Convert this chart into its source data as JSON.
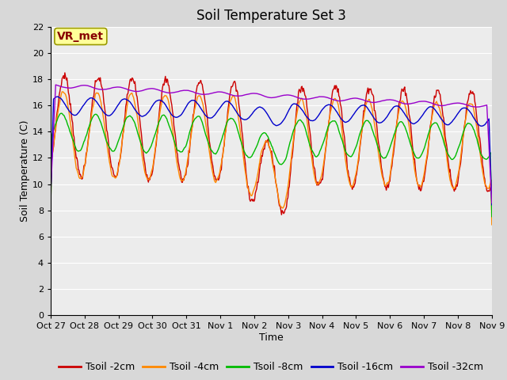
{
  "title": "Soil Temperature Set 3",
  "xlabel": "Time",
  "ylabel": "Soil Temperature (C)",
  "ylim": [
    0,
    22
  ],
  "yticks": [
    0,
    2,
    4,
    6,
    8,
    10,
    12,
    14,
    16,
    18,
    20,
    22
  ],
  "xtick_labels": [
    "Oct 27",
    "Oct 28",
    "Oct 29",
    "Oct 30",
    "Oct 31",
    "Nov 1",
    "Nov 2",
    "Nov 3",
    "Nov 4",
    "Nov 5",
    "Nov 6",
    "Nov 7",
    "Nov 8",
    "Nov 9"
  ],
  "colors": {
    "Tsoil -2cm": "#cc0000",
    "Tsoil -4cm": "#ff8800",
    "Tsoil -8cm": "#00bb00",
    "Tsoil -16cm": "#0000cc",
    "Tsoil -32cm": "#9900cc"
  },
  "background_color": "#d8d8d8",
  "plot_bg_color": "#ececec",
  "annotation_text": "VR_met",
  "annotation_bg": "#ffff99",
  "annotation_border": "#999900",
  "annotation_text_color": "#880000",
  "title_fontsize": 12,
  "axis_fontsize": 9,
  "tick_fontsize": 8,
  "legend_fontsize": 9
}
